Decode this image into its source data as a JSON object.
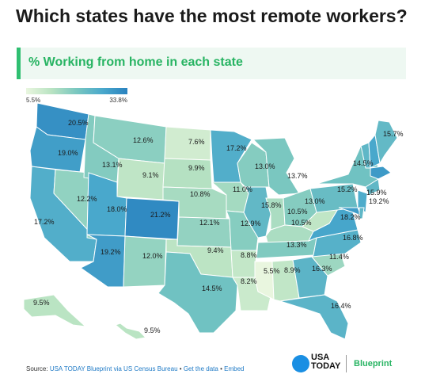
{
  "title": "Which states have the most remote workers?",
  "subtitle": "% Working from home in each state",
  "legend": {
    "min": "5.5%",
    "max": "33.8%"
  },
  "footer": {
    "source_label": "Source:",
    "source_link": "USA TODAY Blueprint via US Census Bureau",
    "sep1": "•",
    "get_data": "Get the data",
    "sep2": "•",
    "embed": "Embed"
  },
  "logos": {
    "usa_today_line1": "USA",
    "usa_today_line2": "TODAY",
    "blueprint": "Blueprint"
  },
  "colors": {
    "low": "#e9f6df",
    "mid": "#79c7c0",
    "high": "#2a82bf",
    "accent": "#28b463"
  },
  "states": [
    {
      "code": "WA",
      "label": "20.5%",
      "value": 20.5
    },
    {
      "code": "OR",
      "label": "19.0%",
      "value": 19.0
    },
    {
      "code": "CA",
      "label": "17.2%",
      "value": 17.2
    },
    {
      "code": "NV",
      "label": "12.2%",
      "value": 12.2
    },
    {
      "code": "ID",
      "label": "13.1%",
      "value": 13.1
    },
    {
      "code": "MT",
      "label": "12.6%",
      "value": 12.6
    },
    {
      "code": "WY",
      "label": "9.1%",
      "value": 9.1
    },
    {
      "code": "UT",
      "label": "18.0%",
      "value": 18.0
    },
    {
      "code": "AZ",
      "label": "19.2%",
      "value": 19.2
    },
    {
      "code": "CO",
      "label": "21.2%",
      "value": 21.2
    },
    {
      "code": "NM",
      "label": "12.0%",
      "value": 12.0
    },
    {
      "code": "ND",
      "label": "7.6%",
      "value": 7.6
    },
    {
      "code": "SD",
      "label": "9.9%",
      "value": 9.9
    },
    {
      "code": "NE",
      "label": "10.8%",
      "value": 10.8
    },
    {
      "code": "KS",
      "label": "12.1%",
      "value": 12.1
    },
    {
      "code": "OK",
      "label": "9.4%",
      "value": 9.4
    },
    {
      "code": "TX",
      "label": "14.5%",
      "value": 14.5
    },
    {
      "code": "MN",
      "label": "17.2%",
      "value": 17.2
    },
    {
      "code": "IA",
      "label": "11.0%",
      "value": 11.0
    },
    {
      "code": "MO",
      "label": "12.9%",
      "value": 12.9
    },
    {
      "code": "AR",
      "label": "8.8%",
      "value": 8.8
    },
    {
      "code": "LA",
      "label": "8.2%",
      "value": 8.2
    },
    {
      "code": "WI",
      "label": "13.0%",
      "value": 13.0
    },
    {
      "code": "IL",
      "label": "15.8%",
      "value": 15.8
    },
    {
      "code": "MI",
      "label": "13.7%",
      "value": 13.7
    },
    {
      "code": "IN",
      "label": "10.5%",
      "value": 10.5
    },
    {
      "code": "OH",
      "label": "13.0%",
      "value": 13.0
    },
    {
      "code": "KY",
      "label": "10.5%",
      "value": 10.5
    },
    {
      "code": "TN",
      "label": "13.3%",
      "value": 13.3
    },
    {
      "code": "MS",
      "label": "5.5%",
      "value": 5.5
    },
    {
      "code": "AL",
      "label": "8.9%",
      "value": 8.9
    },
    {
      "code": "GA",
      "label": "16.3%",
      "value": 16.3
    },
    {
      "code": "FL",
      "label": "16.4%",
      "value": 16.4
    },
    {
      "code": "SC",
      "label": "11.4%",
      "value": 11.4
    },
    {
      "code": "NC",
      "label": "16.8%",
      "value": 16.8
    },
    {
      "code": "VA",
      "label": "18.2%",
      "value": 18.2
    },
    {
      "code": "WV",
      "label": "",
      "value": 9.0
    },
    {
      "code": "PA",
      "label": "15.2%",
      "value": 15.2
    },
    {
      "code": "NY",
      "label": "14.5%",
      "value": 14.5
    },
    {
      "code": "VT",
      "label": "",
      "value": 16.0
    },
    {
      "code": "NH",
      "label": "",
      "value": 18.0
    },
    {
      "code": "ME",
      "label": "15.7%",
      "value": 15.7
    },
    {
      "code": "MA",
      "label": "",
      "value": 19.5
    },
    {
      "code": "CT",
      "label": "15.9%",
      "value": 15.9
    },
    {
      "code": "NJ",
      "label": "",
      "value": 17.5
    },
    {
      "code": "MD",
      "label": "19.2%",
      "value": 19.2
    },
    {
      "code": "DE",
      "label": "",
      "value": 16.0
    },
    {
      "code": "AK",
      "label": "9.5%",
      "value": 9.5
    },
    {
      "code": "HI",
      "label": "9.5%",
      "value": 9.5
    }
  ]
}
